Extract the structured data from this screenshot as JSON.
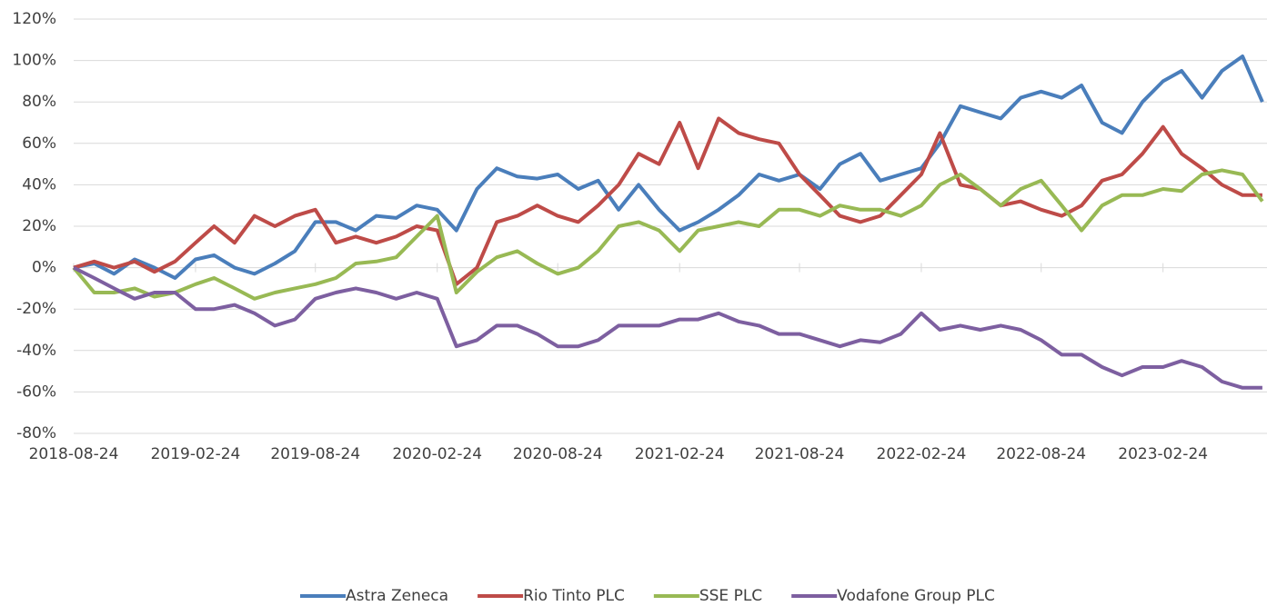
{
  "chart_data": {
    "type": "line",
    "x": [
      "2018-08-24",
      "2018-09-24",
      "2018-10-24",
      "2018-11-24",
      "2018-12-24",
      "2019-01-24",
      "2019-02-24",
      "2019-03-24",
      "2019-04-24",
      "2019-05-24",
      "2019-06-24",
      "2019-07-24",
      "2019-08-24",
      "2019-09-24",
      "2019-10-24",
      "2019-11-24",
      "2019-12-24",
      "2020-01-24",
      "2020-02-24",
      "2020-03-24",
      "2020-04-24",
      "2020-05-24",
      "2020-06-24",
      "2020-07-24",
      "2020-08-24",
      "2020-09-24",
      "2020-10-24",
      "2020-11-24",
      "2020-12-24",
      "2021-01-24",
      "2021-02-24",
      "2021-03-24",
      "2021-04-24",
      "2021-05-24",
      "2021-06-24",
      "2021-07-24",
      "2021-08-24",
      "2021-09-24",
      "2021-10-24",
      "2021-11-24",
      "2021-12-24",
      "2022-01-24",
      "2022-02-24",
      "2022-03-24",
      "2022-04-24",
      "2022-05-24",
      "2022-06-24",
      "2022-07-24",
      "2022-08-24",
      "2022-09-24",
      "2022-10-24",
      "2022-11-24",
      "2022-12-24",
      "2023-01-24",
      "2023-02-24",
      "2023-03-24",
      "2023-04-24",
      "2023-05-24",
      "2023-06-24",
      "2023-07-24"
    ],
    "series": [
      {
        "name": "Astra Zeneca",
        "color": "#4a7ebb",
        "values": [
          0,
          2,
          -3,
          4,
          0,
          -5,
          4,
          6,
          0,
          -3,
          2,
          8,
          22,
          22,
          18,
          25,
          24,
          30,
          28,
          18,
          38,
          48,
          44,
          43,
          45,
          38,
          42,
          28,
          40,
          28,
          18,
          22,
          28,
          35,
          45,
          42,
          45,
          38,
          50,
          55,
          42,
          45,
          48,
          60,
          78,
          75,
          72,
          82,
          85,
          82,
          88,
          70,
          65,
          80,
          90,
          95,
          82,
          95,
          102,
          80
        ]
      },
      {
        "name": "Rio Tinto PLC",
        "color": "#be4b48",
        "values": [
          0,
          3,
          0,
          3,
          -2,
          3,
          12,
          20,
          12,
          25,
          20,
          25,
          28,
          12,
          15,
          12,
          15,
          20,
          18,
          -8,
          0,
          22,
          25,
          30,
          25,
          22,
          30,
          40,
          55,
          50,
          70,
          48,
          72,
          65,
          62,
          60,
          45,
          35,
          25,
          22,
          25,
          35,
          45,
          65,
          40,
          38,
          30,
          32,
          28,
          25,
          30,
          42,
          45,
          55,
          68,
          55,
          48,
          40,
          35,
          35
        ]
      },
      {
        "name": "SSE PLC",
        "color": "#98b954",
        "values": [
          0,
          -12,
          -12,
          -10,
          -14,
          -12,
          -8,
          -5,
          -10,
          -15,
          -12,
          -10,
          -8,
          -5,
          2,
          3,
          5,
          15,
          25,
          -12,
          -2,
          5,
          8,
          2,
          -3,
          0,
          8,
          20,
          22,
          18,
          8,
          18,
          20,
          22,
          20,
          28,
          28,
          25,
          30,
          28,
          28,
          25,
          30,
          40,
          45,
          38,
          30,
          38,
          42,
          30,
          18,
          30,
          35,
          35,
          38,
          37,
          45,
          47,
          45,
          32
        ]
      },
      {
        "name": "Vodafone Group PLC",
        "color": "#7d5fa0",
        "values": [
          0,
          -5,
          -10,
          -15,
          -12,
          -12,
          -20,
          -20,
          -18,
          -22,
          -28,
          -25,
          -15,
          -12,
          -10,
          -12,
          -15,
          -12,
          -15,
          -38,
          -35,
          -28,
          -28,
          -32,
          -38,
          -38,
          -35,
          -28,
          -28,
          -28,
          -25,
          -25,
          -22,
          -26,
          -28,
          -32,
          -32,
          -35,
          -38,
          -35,
          -36,
          -32,
          -22,
          -30,
          -28,
          -30,
          -28,
          -30,
          -35,
          -42,
          -42,
          -48,
          -52,
          -48,
          -48,
          -45,
          -48,
          -55,
          -58,
          -58
        ]
      }
    ],
    "xlim": [
      "2018-08-24",
      "2023-07-31"
    ],
    "xticks": [
      "2018-08-24",
      "2019-02-24",
      "2019-08-24",
      "2020-02-24",
      "2020-08-24",
      "2021-02-24",
      "2021-08-24",
      "2022-02-24",
      "2022-08-24",
      "2023-02-24"
    ],
    "ylim": [
      -80,
      120
    ],
    "yticks": [
      {
        "value": -80,
        "label": "-80%"
      },
      {
        "value": -60,
        "label": "-60%"
      },
      {
        "value": -40,
        "label": "-40%"
      },
      {
        "value": -20,
        "label": "-20%"
      },
      {
        "value": 0,
        "label": "0%"
      },
      {
        "value": 20,
        "label": "20%"
      },
      {
        "value": 40,
        "label": "40%"
      },
      {
        "value": 60,
        "label": "60%"
      },
      {
        "value": 80,
        "label": "80%"
      },
      {
        "value": 100,
        "label": "100%"
      },
      {
        "value": 120,
        "label": "120%"
      }
    ],
    "grid": true,
    "legend": "bottom"
  }
}
